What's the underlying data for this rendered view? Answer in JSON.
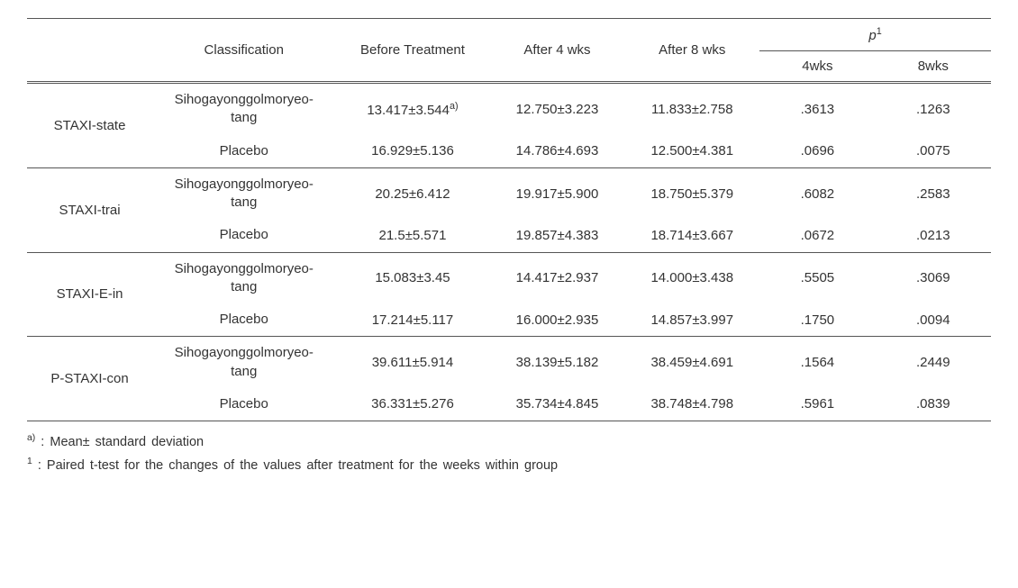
{
  "header": {
    "classification": "Classification",
    "before": "Before Treatment",
    "after4": "After 4 wks",
    "after8": "After 8 wks",
    "p_label": "p",
    "p_sup": "1",
    "p4": "4wks",
    "p8": "8wks"
  },
  "groups": [
    {
      "label": "STAXI-state",
      "rows": [
        {
          "classif_line1": "Sihogayonggolmoryeo-",
          "classif_line2": "tang",
          "before": "13.417±3.544",
          "before_sup": "a)",
          "a4": "12.750±3.223",
          "a8": "11.833±2.758",
          "p4": ".3613",
          "p8": ".1263"
        },
        {
          "classif_line1": "Placebo",
          "classif_line2": "",
          "before": "16.929±5.136",
          "before_sup": "",
          "a4": "14.786±4.693",
          "a8": "12.500±4.381",
          "p4": ".0696",
          "p8": ".0075"
        }
      ]
    },
    {
      "label": "STAXI-trai",
      "rows": [
        {
          "classif_line1": "Sihogayonggolmoryeo-",
          "classif_line2": "tang",
          "before": "20.25±6.412",
          "before_sup": "",
          "a4": "19.917±5.900",
          "a8": "18.750±5.379",
          "p4": ".6082",
          "p8": ".2583"
        },
        {
          "classif_line1": "Placebo",
          "classif_line2": "",
          "before": "21.5±5.571",
          "before_sup": "",
          "a4": "19.857±4.383",
          "a8": "18.714±3.667",
          "p4": ".0672",
          "p8": ".0213"
        }
      ]
    },
    {
      "label": "STAXI-E-in",
      "rows": [
        {
          "classif_line1": "Sihogayonggolmoryeo-",
          "classif_line2": "tang",
          "before": "15.083±3.45",
          "before_sup": "",
          "a4": "14.417±2.937",
          "a8": "14.000±3.438",
          "p4": ".5505",
          "p8": ".3069"
        },
        {
          "classif_line1": "Placebo",
          "classif_line2": "",
          "before": "17.214±5.117",
          "before_sup": "",
          "a4": "16.000±2.935",
          "a8": "14.857±3.997",
          "p4": ".1750",
          "p8": ".0094"
        }
      ]
    },
    {
      "label": "P-STAXI-con",
      "rows": [
        {
          "classif_line1": "Sihogayonggolmoryeo-",
          "classif_line2": "tang",
          "before": "39.611±5.914",
          "before_sup": "",
          "a4": "38.139±5.182",
          "a8": "38.459±4.691",
          "p4": ".1564",
          "p8": ".2449"
        },
        {
          "classif_line1": "Placebo",
          "classif_line2": "",
          "before": "36.331±5.276",
          "before_sup": "",
          "a4": "35.734±4.845",
          "a8": "38.748±4.798",
          "p4": ".5961",
          "p8": ".0839"
        }
      ]
    }
  ],
  "footnotes": {
    "a_sup": "a)",
    "a_text": " : Mean± standard deviation",
    "one_sup": "1",
    "one_text": " : Paired t-test for the changes of the values after treatment for the weeks within group"
  }
}
